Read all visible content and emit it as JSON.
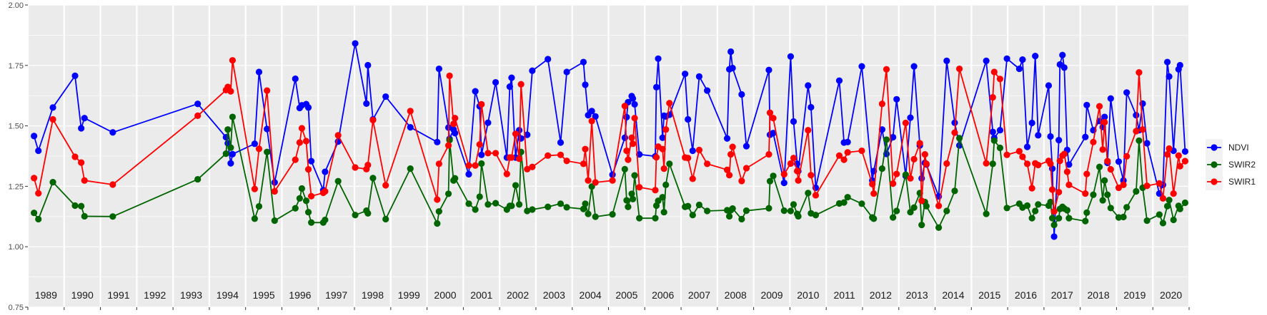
{
  "chart_data": {
    "type": "line",
    "title": "",
    "xlabel": "",
    "ylabel": "",
    "xlim": [
      1989,
      2021
    ],
    "ylim": [
      0.75,
      2.0
    ],
    "grid": true,
    "legend_position": "right",
    "yticks": [
      "0.75",
      "1.00",
      "1.25",
      "1.50",
      "1.75",
      "2.00"
    ],
    "ytick_values": [
      0.75,
      1.0,
      1.25,
      1.5,
      1.75,
      2.0
    ],
    "xticks": [
      "1989",
      "1990",
      "1991",
      "1992",
      "1993",
      "1994",
      "1995",
      "1996",
      "1997",
      "1998",
      "1999",
      "2000",
      "2001",
      "2002",
      "2003",
      "2004",
      "2005",
      "2006",
      "2007",
      "2008",
      "2009",
      "2010",
      "2011",
      "2012",
      "2013",
      "2014",
      "2015",
      "2016",
      "2017",
      "2018",
      "2019",
      "2020"
    ],
    "colors": {
      "NDVI": "#0000ff",
      "SWIR2": "#006400",
      "SWIR1": "#ff0000"
    },
    "legend": [
      "NDVI",
      "SWIR2",
      "SWIR1"
    ],
    "x": [
      1989.17,
      1989.29,
      1989.69,
      1990.3,
      1990.47,
      1990.56,
      1991.34,
      1993.68,
      1994.46,
      1994.51,
      1994.59,
      1994.64,
      1995.25,
      1995.37,
      1995.59,
      1995.8,
      1996.37,
      1996.49,
      1996.55,
      1996.67,
      1996.73,
      1996.81,
      1997.14,
      1997.19,
      1997.55,
      1998.02,
      1998.33,
      1998.37,
      1998.51,
      1998.86,
      1999.54,
      2000.28,
      2000.33,
      2000.59,
      2000.62,
      2000.73,
      2000.77,
      2001.15,
      2001.33,
      2001.45,
      2001.5,
      2001.68,
      2001.89,
      2002.2,
      2002.28,
      2002.33,
      2002.44,
      2002.54,
      2002.59,
      2002.76,
      2002.9,
      2003.33,
      2003.68,
      2003.85,
      2004.31,
      2004.36,
      2004.44,
      2004.54,
      2004.64,
      2005.11,
      2005.45,
      2005.5,
      2005.54,
      2005.64,
      2005.67,
      2005.72,
      2005.85,
      2006.29,
      2006.32,
      2006.37,
      2006.49,
      2006.53,
      2006.58,
      2006.68,
      2007.11,
      2007.19,
      2007.32,
      2007.5,
      2007.72,
      2008.27,
      2008.33,
      2008.37,
      2008.42,
      2008.67,
      2008.8,
      2009.42,
      2009.45,
      2009.54,
      2009.84,
      2010.02,
      2010.1,
      2010.2,
      2010.23,
      2010.5,
      2010.58,
      2010.71,
      2011.36,
      2011.49,
      2011.59,
      2011.98,
      2012.27,
      2012.31,
      2012.54,
      2012.66,
      2012.84,
      2012.94,
      2013.19,
      2013.32,
      2013.42,
      2013.58,
      2013.63,
      2013.72,
      2013.76,
      2014.1,
      2014.32,
      2014.54,
      2014.67,
      2015.41,
      2015.59,
      2015.63,
      2015.79,
      2015.98,
      2016.32,
      2016.41,
      2016.54,
      2016.67,
      2016.76,
      2016.84,
      2017.13,
      2017.18,
      2017.23,
      2017.28,
      2017.41,
      2017.44,
      2017.51,
      2017.56,
      2017.64,
      2017.69,
      2018.14,
      2018.18,
      2018.36,
      2018.53,
      2018.62,
      2018.67,
      2018.75,
      2018.84,
      2019.06,
      2019.19,
      2019.28,
      2019.54,
      2019.62,
      2019.72,
      2019.84,
      2020.18,
      2020.28,
      2020.4,
      2020.45,
      2020.57,
      2020.71,
      2020.75,
      2020.89
    ],
    "series": [
      {
        "name": "NDVI",
        "values": [
          1.458,
          1.397,
          1.576,
          1.707,
          1.49,
          1.532,
          1.473,
          1.591,
          1.453,
          1.428,
          1.345,
          1.383,
          1.426,
          1.723,
          1.487,
          1.266,
          1.695,
          1.574,
          1.585,
          1.59,
          1.576,
          1.354,
          1.234,
          1.31,
          1.435,
          1.841,
          1.592,
          1.751,
          1.527,
          1.621,
          1.494,
          1.433,
          1.736,
          1.493,
          1.446,
          1.485,
          1.47,
          1.3,
          1.643,
          1.581,
          1.38,
          1.513,
          1.68,
          1.369,
          1.662,
          1.699,
          1.369,
          1.482,
          1.448,
          1.463,
          1.728,
          1.776,
          1.431,
          1.723,
          1.764,
          1.67,
          1.544,
          1.561,
          1.539,
          1.298,
          1.451,
          1.536,
          1.598,
          1.623,
          1.613,
          1.589,
          1.382,
          1.374,
          1.66,
          1.778,
          1.451,
          1.542,
          1.539,
          1.546,
          1.715,
          1.527,
          1.397,
          1.704,
          1.646,
          1.448,
          1.734,
          1.807,
          1.739,
          1.63,
          1.416,
          1.731,
          1.463,
          1.47,
          1.264,
          1.787,
          1.518,
          1.343,
          1.313,
          1.667,
          1.577,
          1.244,
          1.687,
          1.431,
          1.433,
          1.746,
          1.274,
          1.313,
          1.485,
          1.384,
          1.453,
          1.61,
          1.293,
          1.534,
          1.746,
          1.419,
          1.283,
          1.347,
          1.34,
          1.208,
          1.769,
          1.513,
          1.419,
          1.769,
          1.475,
          1.45,
          1.482,
          1.778,
          1.736,
          1.774,
          1.413,
          1.512,
          1.789,
          1.461,
          1.667,
          1.456,
          1.323,
          1.042,
          1.441,
          1.754,
          1.793,
          1.741,
          1.4,
          1.34,
          1.454,
          1.586,
          1.482,
          1.52,
          1.495,
          1.537,
          1.347,
          1.613,
          1.352,
          1.274,
          1.638,
          1.544,
          1.482,
          1.592,
          1.428,
          1.22,
          1.256,
          1.764,
          1.704,
          1.397,
          1.734,
          1.751,
          1.394
        ]
      },
      {
        "name": "SWIR2",
        "values": [
          1.14,
          1.114,
          1.267,
          1.17,
          1.168,
          1.126,
          1.125,
          1.279,
          1.385,
          1.485,
          1.41,
          1.537,
          1.116,
          1.167,
          1.392,
          1.108,
          1.159,
          1.2,
          1.241,
          1.19,
          1.143,
          1.1,
          1.1,
          1.111,
          1.271,
          1.131,
          1.149,
          1.138,
          1.284,
          1.114,
          1.323,
          1.096,
          1.146,
          1.219,
          1.441,
          1.274,
          1.283,
          1.178,
          1.154,
          1.207,
          1.344,
          1.175,
          1.18,
          1.154,
          1.169,
          1.169,
          1.254,
          1.175,
          1.392,
          1.148,
          1.154,
          1.165,
          1.178,
          1.163,
          1.156,
          1.178,
          1.136,
          1.249,
          1.124,
          1.134,
          1.321,
          1.192,
          1.165,
          1.219,
          1.197,
          1.295,
          1.118,
          1.118,
          1.17,
          1.19,
          1.205,
          1.143,
          1.256,
          1.343,
          1.165,
          1.168,
          1.131,
          1.173,
          1.148,
          1.151,
          1.126,
          1.151,
          1.158,
          1.114,
          1.149,
          1.159,
          1.271,
          1.293,
          1.149,
          1.148,
          1.175,
          1.136,
          1.126,
          1.222,
          1.138,
          1.131,
          1.179,
          1.183,
          1.205,
          1.178,
          1.121,
          1.116,
          1.323,
          1.443,
          1.121,
          1.148,
          1.298,
          1.143,
          1.162,
          1.222,
          1.09,
          1.185,
          1.168,
          1.079,
          1.148,
          1.231,
          1.449,
          1.136,
          1.343,
          1.439,
          1.409,
          1.16,
          1.178,
          1.162,
          1.17,
          1.118,
          1.148,
          1.175,
          1.17,
          1.185,
          1.118,
          1.09,
          1.118,
          1.156,
          1.165,
          1.158,
          1.151,
          1.118,
          1.106,
          1.141,
          1.215,
          1.33,
          1.192,
          1.274,
          1.215,
          1.16,
          1.121,
          1.123,
          1.163,
          1.229,
          1.439,
          1.244,
          1.108,
          1.133,
          1.098,
          1.168,
          1.193,
          1.111,
          1.169,
          1.156,
          1.182
        ]
      },
      {
        "name": "SWIR1",
        "values": [
          1.284,
          1.221,
          1.527,
          1.372,
          1.348,
          1.274,
          1.257,
          1.542,
          1.648,
          1.661,
          1.643,
          1.771,
          1.239,
          1.405,
          1.646,
          1.229,
          1.36,
          1.431,
          1.49,
          1.437,
          1.32,
          1.209,
          1.223,
          1.229,
          1.461,
          1.328,
          1.321,
          1.338,
          1.524,
          1.254,
          1.561,
          1.195,
          1.343,
          1.419,
          1.707,
          1.508,
          1.532,
          1.336,
          1.336,
          1.423,
          1.589,
          1.387,
          1.387,
          1.301,
          1.369,
          1.369,
          1.467,
          1.364,
          1.672,
          1.321,
          1.33,
          1.377,
          1.38,
          1.355,
          1.343,
          1.404,
          1.274,
          1.52,
          1.266,
          1.274,
          1.582,
          1.397,
          1.36,
          1.451,
          1.426,
          1.532,
          1.246,
          1.234,
          1.37,
          1.414,
          1.404,
          1.323,
          1.485,
          1.594,
          1.369,
          1.367,
          1.281,
          1.4,
          1.343,
          1.318,
          1.296,
          1.382,
          1.413,
          1.272,
          1.325,
          1.382,
          1.554,
          1.532,
          1.3,
          1.344,
          1.367,
          1.313,
          1.274,
          1.482,
          1.296,
          1.213,
          1.377,
          1.36,
          1.39,
          1.397,
          1.259,
          1.22,
          1.591,
          1.734,
          1.261,
          1.301,
          1.512,
          1.283,
          1.362,
          1.428,
          1.19,
          1.382,
          1.343,
          1.169,
          1.344,
          1.472,
          1.736,
          1.345,
          1.618,
          1.723,
          1.694,
          1.38,
          1.395,
          1.372,
          1.343,
          1.242,
          1.345,
          1.338,
          1.355,
          1.343,
          1.236,
          1.146,
          1.226,
          1.355,
          1.377,
          1.384,
          1.31,
          1.256,
          1.22,
          1.301,
          1.433,
          1.581,
          1.402,
          1.515,
          1.354,
          1.32,
          1.244,
          1.256,
          1.374,
          1.478,
          1.721,
          1.485,
          1.252,
          1.262,
          1.2,
          1.382,
          1.406,
          1.22,
          1.377,
          1.333,
          1.354
        ]
      }
    ]
  }
}
